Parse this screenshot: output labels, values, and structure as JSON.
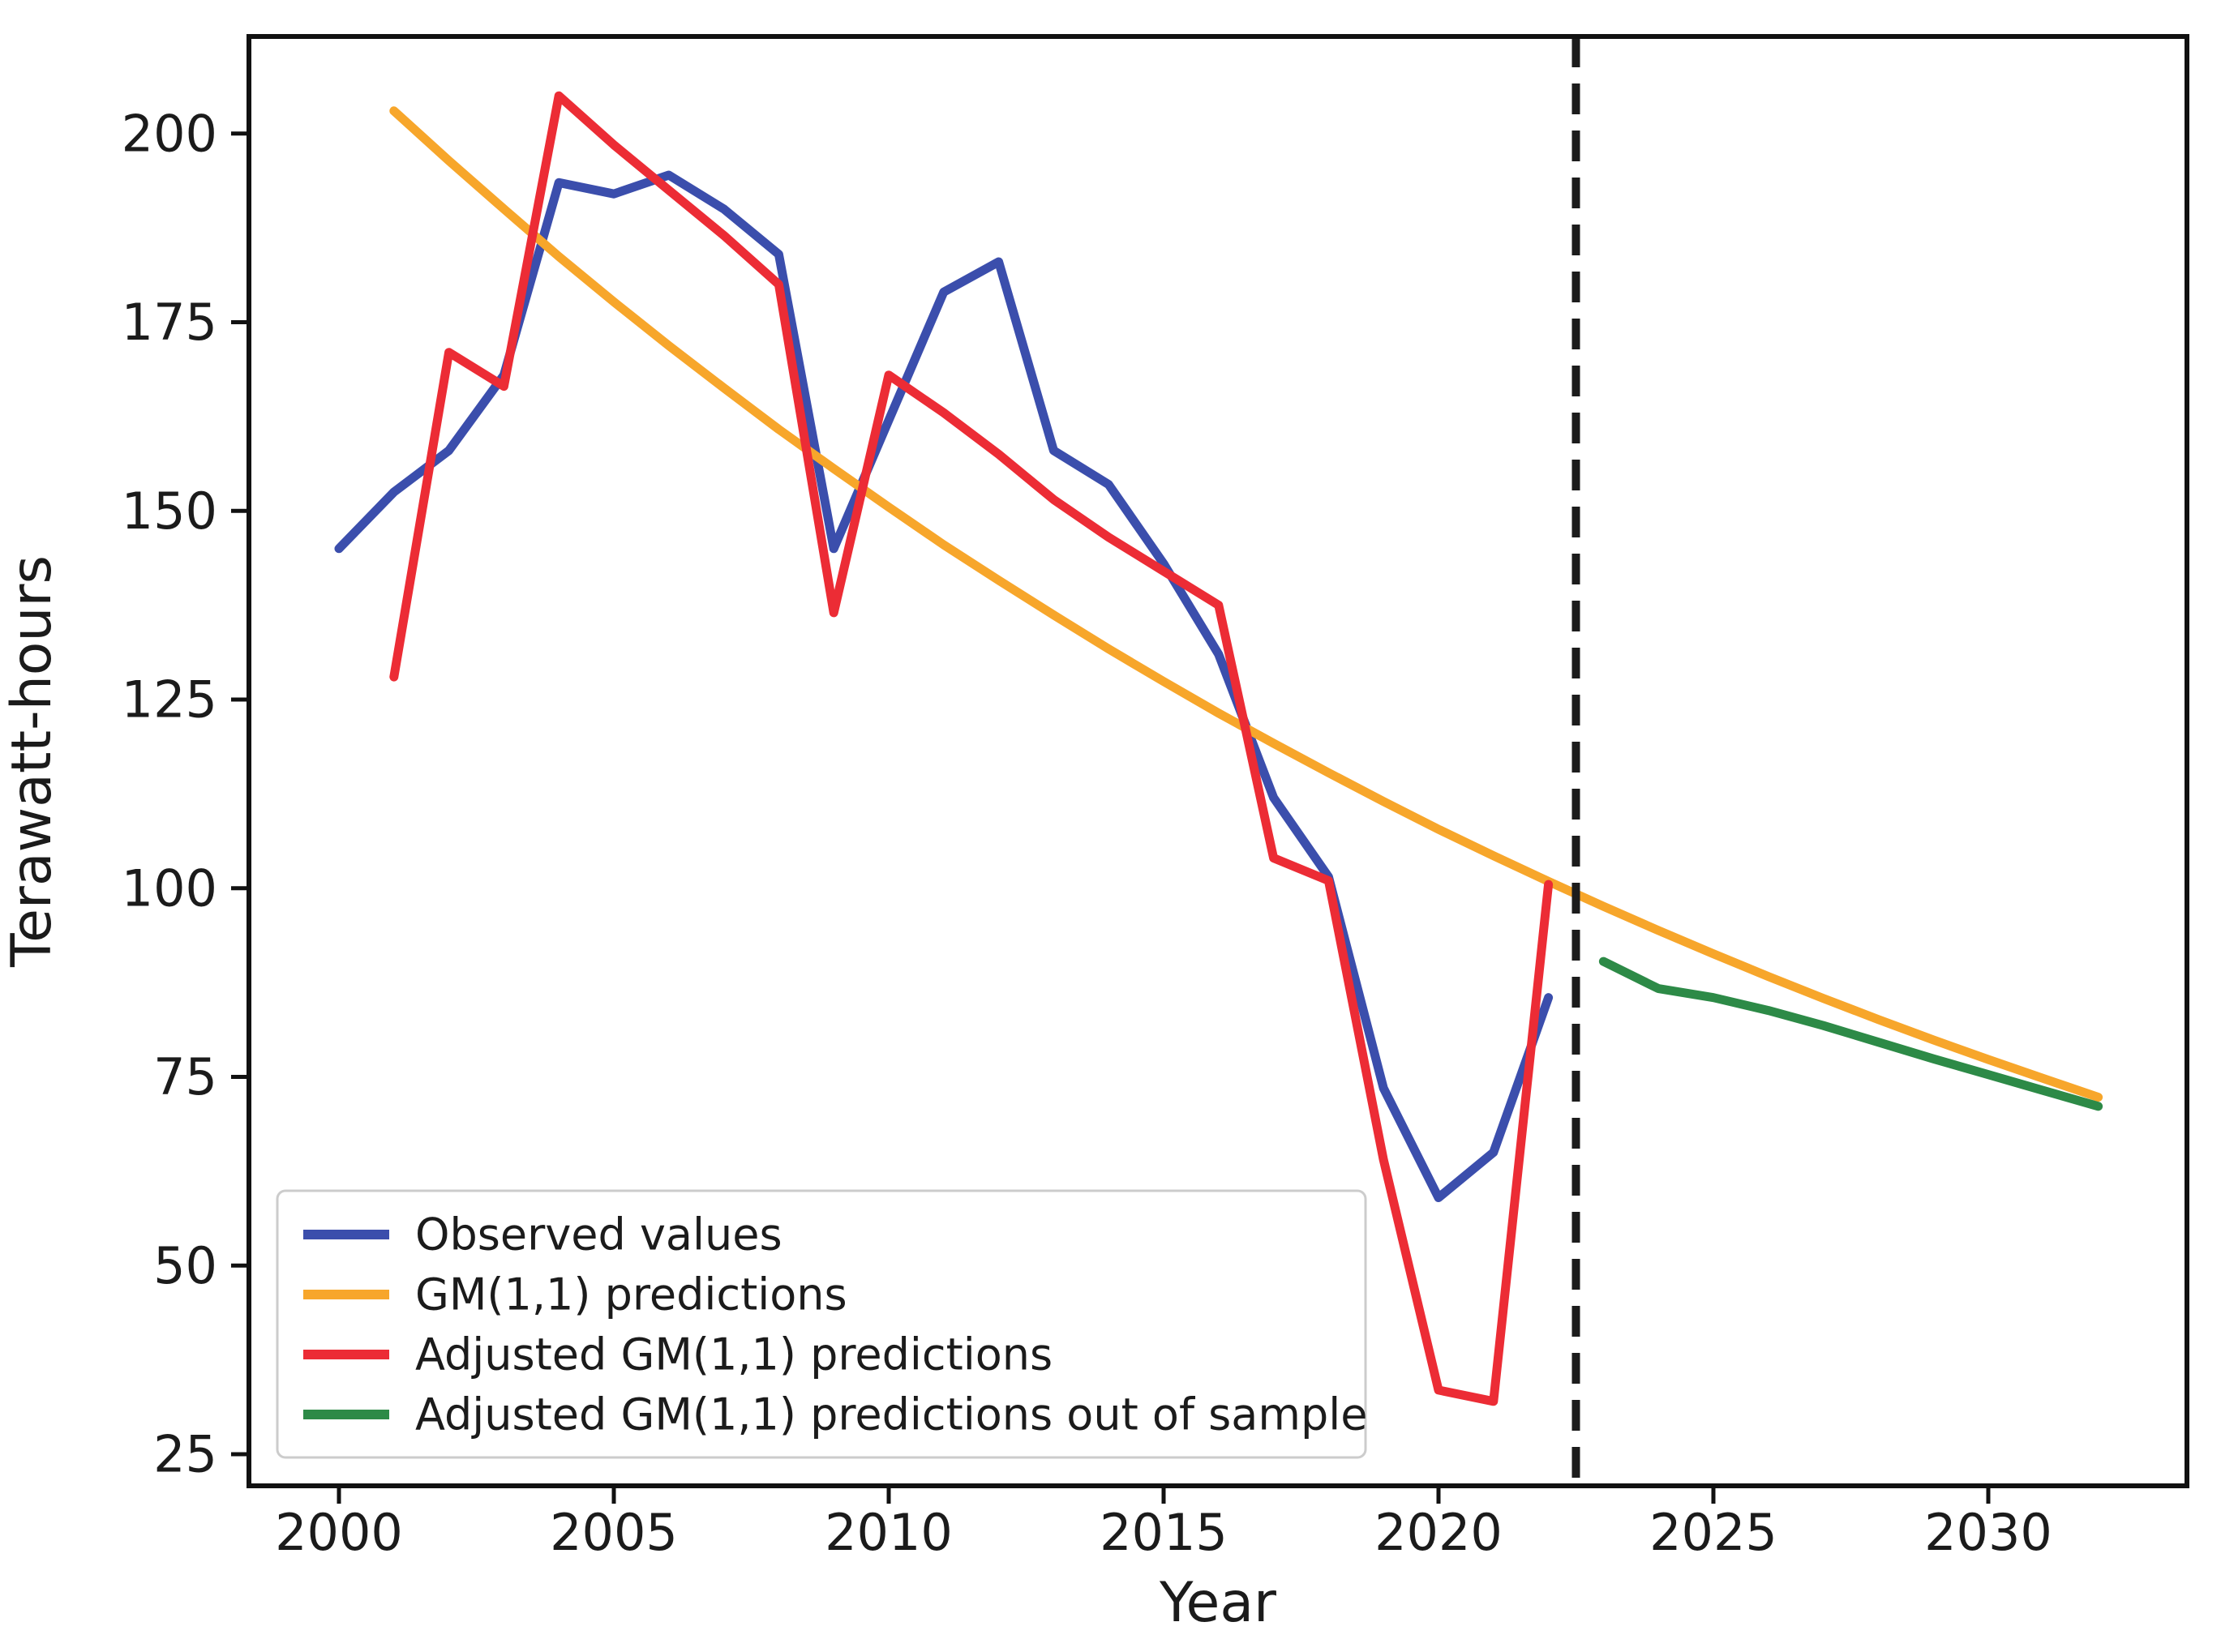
{
  "figure": {
    "background": "#ffffff",
    "text_color": "#1b1b1b"
  },
  "chart_data": {
    "type": "line",
    "title": "",
    "xlabel": "Year",
    "ylabel": "Terawatt-hours",
    "xlim": [
      1998.4,
      2033.6
    ],
    "ylim": [
      22.8,
      213.7
    ],
    "x_ticks": [
      2000,
      2005,
      2010,
      2015,
      2020,
      2025,
      2030
    ],
    "y_ticks": [
      25,
      50,
      75,
      100,
      125,
      150,
      175,
      200
    ],
    "grid": false,
    "legend_position": "lower left",
    "vline": {
      "x": 2022.5,
      "style": "dashed",
      "color": "#1c1c1c"
    },
    "series": [
      {
        "name": "Observed values",
        "color": "#3b4eac",
        "x": [
          2000,
          2001,
          2002,
          2003,
          2004,
          2005,
          2006,
          2007,
          2008,
          2009,
          2010,
          2011,
          2012,
          2013,
          2014,
          2015,
          2016,
          2017,
          2018,
          2019,
          2020,
          2021,
          2022
        ],
        "values": [
          145,
          152.5,
          158,
          168,
          193.5,
          192,
          194.5,
          190,
          184,
          145,
          162,
          179,
          183,
          158,
          153.5,
          143,
          131,
          112,
          101.5,
          73.5,
          59,
          65,
          85.5
        ]
      },
      {
        "name": "GM(1,1) predictions",
        "color": "#f7a62b",
        "x": [
          2001,
          2002,
          2003,
          2004,
          2005,
          2006,
          2007,
          2008,
          2009,
          2010,
          2011,
          2012,
          2013,
          2014,
          2015,
          2016,
          2017,
          2018,
          2019,
          2020,
          2021,
          2022,
          2023,
          2024,
          2025,
          2026,
          2027,
          2028,
          2029,
          2030,
          2031,
          2032
        ],
        "values": [
          203,
          196.4,
          190,
          183.7,
          177.7,
          171.9,
          166.3,
          160.8,
          155.6,
          150.5,
          145.5,
          140.8,
          136.2,
          131.7,
          127.4,
          123.2,
          119.2,
          115.3,
          111.5,
          107.8,
          104.3,
          100.9,
          97.6,
          94.4,
          91.3,
          88.3,
          85.4,
          82.6,
          79.9,
          77.3,
          74.8,
          72.3
        ]
      },
      {
        "name": "Adjusted GM(1,1) predictions",
        "color": "#ec2c35",
        "x": [
          2001,
          2002,
          2003,
          2004,
          2005,
          2006,
          2007,
          2008,
          2009,
          2010,
          2011,
          2012,
          2013,
          2014,
          2015,
          2016,
          2017,
          2018,
          2019,
          2020,
          2021,
          2022
        ],
        "values": [
          128,
          171,
          166.5,
          205,
          198.5,
          192.5,
          186.5,
          180,
          136.5,
          168,
          163,
          157.5,
          151.5,
          146.5,
          142,
          137.5,
          104,
          101,
          64,
          33.5,
          32,
          100.5
        ]
      },
      {
        "name": "Adjusted GM(1,1) predictions out of sample",
        "color": "#2d8a47",
        "x": [
          2023,
          2024,
          2025,
          2026,
          2027,
          2028,
          2029,
          2030,
          2031,
          2032
        ],
        "values": [
          90.3,
          86.7,
          85.5,
          83.8,
          81.8,
          79.6,
          77.4,
          75.3,
          73.2,
          71.1
        ]
      }
    ]
  }
}
